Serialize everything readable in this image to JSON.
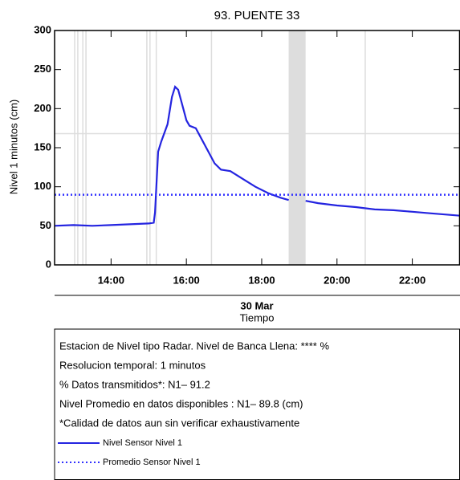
{
  "chart_data": {
    "type": "line",
    "title": "93. PUENTE 33",
    "y_label": "Nivel 1 minutos (cm)",
    "x_label": "Tiempo",
    "date_label": "30 Mar",
    "xlim": [
      "12:30",
      "23:16"
    ],
    "xticks": [
      "14:00",
      "16:00",
      "18:00",
      "20:00",
      "22:00"
    ],
    "ylim": [
      0,
      300
    ],
    "yticks": [
      0,
      50,
      100,
      150,
      200,
      250,
      300
    ],
    "threshold": 168,
    "gaps": [
      "13:02",
      "13:07",
      "13:15",
      "13:20",
      "14:57",
      "15:02",
      "15:12",
      "16:40",
      "20:45"
    ],
    "gap_band": [
      "18:43",
      "19:10"
    ],
    "series": [
      {
        "name": "Nivel Sensor Nivel 1",
        "color": "#2424e0",
        "style": "solid",
        "x": [
          "12:30",
          "13:00",
          "13:30",
          "14:00",
          "14:30",
          "15:00",
          "15:08",
          "15:10",
          "15:15",
          "15:20",
          "15:30",
          "15:37",
          "15:42",
          "15:47",
          "15:55",
          "16:00",
          "16:05",
          "16:15",
          "16:25",
          "16:35",
          "16:45",
          "16:55",
          "17:10",
          "17:30",
          "17:50",
          "18:10",
          "18:30",
          "18:43",
          "18:50",
          "19:10",
          "19:30",
          "20:00",
          "20:30",
          "21:00",
          "21:30",
          "22:00",
          "22:30",
          "23:16"
        ],
        "values": [
          50,
          51,
          50,
          51,
          52,
          53,
          54,
          67,
          145,
          158,
          180,
          215,
          228,
          224,
          200,
          185,
          178,
          175,
          160,
          145,
          130,
          122,
          120,
          110,
          100,
          92,
          86,
          83,
          null,
          82,
          79,
          76,
          74,
          71,
          70,
          68,
          66,
          63
        ]
      },
      {
        "name": "Promedio Sensor Nivel 1",
        "color": "#3030ff",
        "style": "dotted",
        "x": [
          "12:30",
          "23:16"
        ],
        "values": [
          89.8,
          89.8
        ]
      }
    ],
    "notes": [
      "Estacion de Nivel tipo Radar. Nivel de Banca Llena: **** %",
      "Resolucion temporal: 1 minutos",
      "% Datos transmitidos*: N1– 91.2",
      "Nivel Promedio en datos disponibles : N1– 89.8 (cm)",
      "*Calidad de datos aun sin verificar exhaustivamente"
    ]
  }
}
